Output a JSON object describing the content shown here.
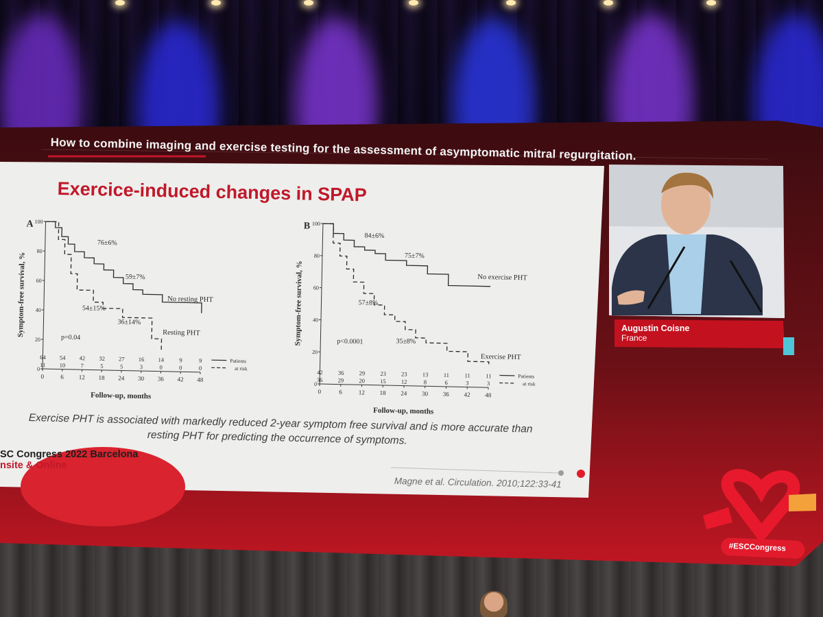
{
  "slide": {
    "header": "How to combine imaging and exercise testing for the assessment of asymptomatic mitral regurgitation.",
    "title": "Exercice-induced changes in SPAP",
    "caption_line1": "Exercise PHT is associated with markedly reduced 2-year symptom free survival and is more accurate than",
    "caption_line2": "resting PHT for predicting the occurrence of symptoms.",
    "congress_line1": "SC Congress 2022 Barcelona",
    "congress_line2": "nsite & Online",
    "citation": "Magne et al. Circulation. 2010;122:33-41"
  },
  "speaker": {
    "name": "Augustin Coisne",
    "country": "France"
  },
  "hashtag": "#ESCCongress",
  "colors": {
    "brand_red": "#c0182a",
    "screen_dark_red": "#5b0f14",
    "slide_bg": "#eeeeec"
  },
  "chart_data": [
    {
      "type": "line",
      "panel_label": "A",
      "xlabel": "Follow-up, months",
      "ylabel": "Symptom-free survival, %",
      "xlim": [
        0,
        48
      ],
      "ylim": [
        0,
        100
      ],
      "x_ticks": [
        "0",
        "6",
        "12",
        "18",
        "24",
        "30",
        "36",
        "42",
        "48"
      ],
      "y_ticks": [
        "0",
        "20",
        "40",
        "60",
        "80",
        "100"
      ],
      "annotations": [
        "76±6%",
        "59±7%",
        "54±15%",
        "36±14%",
        "p=0.04"
      ],
      "series": [
        {
          "name": "No resting PHT",
          "x": [
            0,
            3,
            5,
            7,
            9,
            12,
            15,
            18,
            21,
            24,
            27,
            30,
            36,
            48
          ],
          "y": [
            100,
            96,
            90,
            85,
            80,
            76,
            72,
            68,
            63,
            59,
            55,
            52,
            47,
            40
          ]
        },
        {
          "name": "Resting PHT",
          "x": [
            0,
            4,
            6,
            8,
            10,
            12,
            15,
            18,
            24,
            30,
            33,
            36
          ],
          "y": [
            100,
            88,
            78,
            65,
            54,
            54,
            46,
            42,
            36,
            36,
            22,
            14
          ]
        }
      ],
      "risk_table": {
        "legend": [
          "Patients",
          "at risk"
        ],
        "no_resting_pht": [
          "64",
          "54",
          "42",
          "32",
          "27",
          "16",
          "14",
          "9",
          "9"
        ],
        "resting_pht": [
          "11",
          "10",
          "7",
          "5",
          "5",
          "3",
          "0",
          "0",
          "0"
        ]
      }
    },
    {
      "type": "line",
      "panel_label": "B",
      "xlabel": "Follow-up, months",
      "ylabel": "Symptom-free survival, %",
      "xlim": [
        0,
        48
      ],
      "ylim": [
        0,
        100
      ],
      "x_ticks": [
        "0",
        "6",
        "12",
        "18",
        "24",
        "30",
        "36",
        "42",
        "48"
      ],
      "y_ticks": [
        "0",
        "20",
        "40",
        "60",
        "80",
        "100"
      ],
      "annotations": [
        "84±6%",
        "75±7%",
        "57±8%",
        "35±8%",
        "p<0.0001"
      ],
      "series": [
        {
          "name": "No exercise PHT",
          "x": [
            0,
            3,
            6,
            9,
            12,
            15,
            18,
            24,
            30,
            36,
            42,
            48
          ],
          "y": [
            100,
            94,
            90,
            86,
            84,
            82,
            78,
            75,
            70,
            63,
            63,
            63
          ]
        },
        {
          "name": "Exercise PHT",
          "x": [
            0,
            3,
            5,
            7,
            9,
            12,
            15,
            18,
            21,
            24,
            27,
            30,
            36,
            42,
            48
          ],
          "y": [
            100,
            88,
            80,
            72,
            64,
            57,
            50,
            44,
            40,
            35,
            30,
            27,
            22,
            16,
            14
          ]
        }
      ],
      "risk_table": {
        "legend": [
          "Patients",
          "at risk"
        ],
        "no_exercise_pht": [
          "42",
          "36",
          "29",
          "23",
          "23",
          "13",
          "11",
          "11",
          "11"
        ],
        "exercise_pht": [
          "36",
          "29",
          "20",
          "15",
          "12",
          "8",
          "6",
          "3",
          "3"
        ]
      }
    }
  ]
}
